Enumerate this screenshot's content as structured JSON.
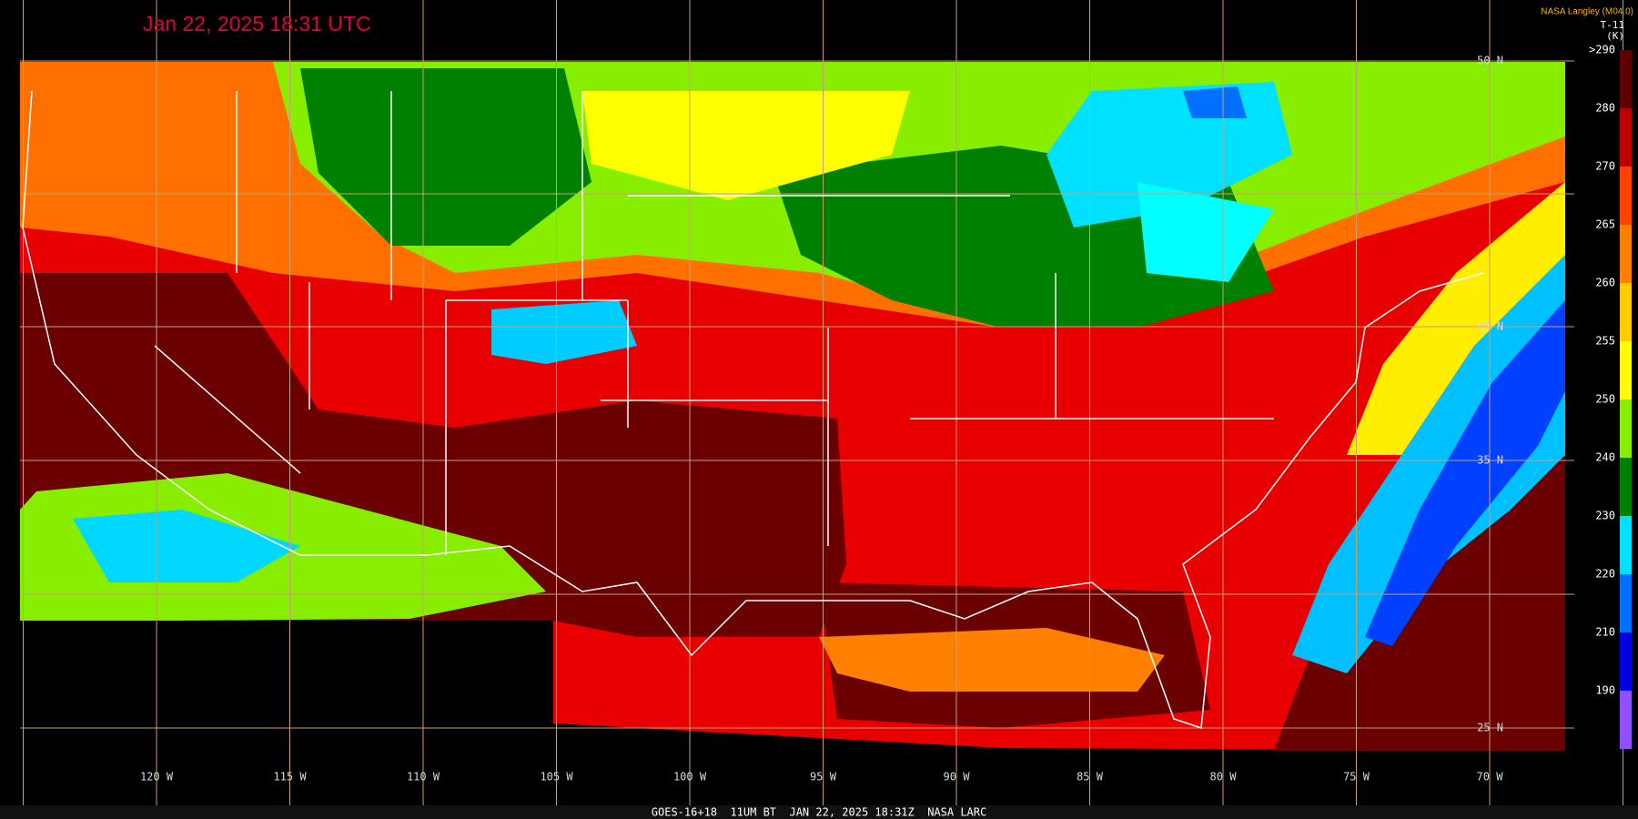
{
  "timestamp": "Jan 22, 2025 18:31 UTC",
  "credit": "NASA Langley (M04.0)",
  "colorbar": {
    "title": [
      "T-11",
      "(K)"
    ],
    "labels": [
      ">290",
      "280",
      "270",
      "265",
      "260",
      "255",
      "250",
      "240",
      "230",
      "220",
      "210",
      "190"
    ]
  },
  "longitude_labels": [
    "120 W",
    "115 W",
    "110 W",
    "105 W",
    "100 W",
    "95 W",
    "90 W",
    "85 W",
    "80 W",
    "75 W",
    "70 W"
  ],
  "latitude_labels": [
    "50 N",
    "40 N",
    "35 N",
    "25 N"
  ],
  "footer": "GOES-16+18  11UM BT  JAN 22, 2025 18:31Z  NASA LARC"
}
